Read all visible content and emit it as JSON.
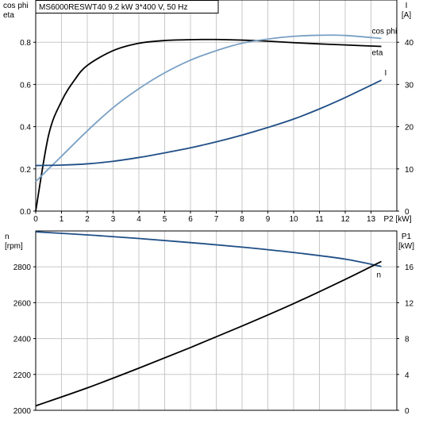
{
  "chart_data": [
    {
      "type": "line",
      "title": "MS6000RESWT40    9.2 kW    3*400 V, 50 Hz",
      "xlabel": "P2 [kW]",
      "y_left_label": [
        "cos phi",
        "eta"
      ],
      "y_right_label": [
        "I",
        "[A]"
      ],
      "xlim": [
        0,
        14
      ],
      "ylim_left": [
        0,
        1
      ],
      "ylim_right": [
        0,
        50
      ],
      "x_ticks": [
        0,
        1,
        2,
        3,
        4,
        5,
        6,
        7,
        8,
        9,
        10,
        11,
        12,
        13
      ],
      "y_left_ticks": [
        "0.0",
        "0.2",
        "0.4",
        "0.6",
        "0.8"
      ],
      "y_right_ticks": [
        "0",
        "10",
        "20",
        "30",
        "40"
      ],
      "grid": true,
      "series": [
        {
          "name": "eta",
          "axis": "left",
          "color": "#000000",
          "x": [
            0,
            0.5,
            1,
            1.5,
            2,
            3,
            4,
            5,
            6,
            7,
            8,
            9,
            10,
            11,
            12,
            13.4
          ],
          "y": [
            0,
            0.36,
            0.52,
            0.62,
            0.69,
            0.76,
            0.795,
            0.808,
            0.812,
            0.813,
            0.81,
            0.805,
            0.798,
            0.792,
            0.787,
            0.78
          ]
        },
        {
          "name": "cos phi",
          "axis": "left",
          "color": "#7aa0c4",
          "x": [
            0,
            1,
            2,
            3,
            4,
            5,
            6,
            7,
            8,
            9,
            10,
            11,
            12,
            13.4
          ],
          "y": [
            0.14,
            0.26,
            0.38,
            0.49,
            0.58,
            0.655,
            0.715,
            0.76,
            0.795,
            0.815,
            0.828,
            0.833,
            0.832,
            0.818
          ]
        },
        {
          "name": "I",
          "axis": "right",
          "color": "#1f4e86",
          "x": [
            0,
            1,
            2,
            3,
            4,
            5,
            6,
            7,
            8,
            9,
            10,
            11,
            12,
            13.4
          ],
          "y": [
            10.8,
            10.9,
            11.2,
            11.8,
            12.7,
            13.8,
            15.0,
            16.4,
            18.0,
            19.8,
            21.8,
            24.2,
            26.9,
            31.0
          ]
        }
      ]
    },
    {
      "type": "line",
      "xlabel": "",
      "y_left_label": [
        "n",
        "[rpm]"
      ],
      "y_right_label": [
        "P1",
        "[kW]"
      ],
      "xlim": [
        0,
        14
      ],
      "ylim_left": [
        2000,
        3000
      ],
      "ylim_right": [
        0,
        20
      ],
      "y_left_ticks": [
        "2000",
        "2200",
        "2400",
        "2600",
        "2800"
      ],
      "y_right_ticks": [
        "0",
        "4",
        "8",
        "12",
        "16"
      ],
      "grid": true,
      "series": [
        {
          "name": "n",
          "axis": "left",
          "color": "#1f4e86",
          "x": [
            0,
            2,
            4,
            6,
            8,
            10,
            12,
            13.4
          ],
          "y": [
            2995,
            2978,
            2958,
            2935,
            2910,
            2880,
            2843,
            2802
          ]
        },
        {
          "name": "",
          "axis": "right",
          "color": "#000000",
          "x": [
            0,
            2,
            4,
            6,
            8,
            10,
            12,
            13.4
          ],
          "y": [
            0.5,
            2.5,
            4.7,
            7.0,
            9.4,
            11.9,
            14.6,
            16.6
          ]
        }
      ]
    }
  ]
}
